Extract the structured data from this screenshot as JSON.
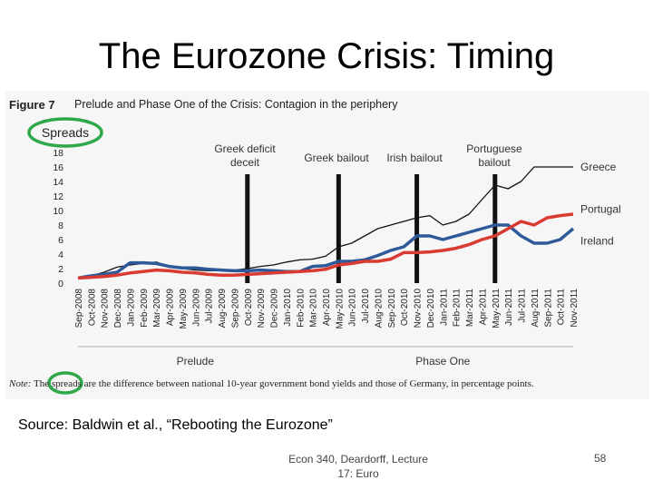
{
  "slide": {
    "title": "The Eurozone Crisis:  Timing",
    "figure_label": "Figure 7",
    "figure_caption": "Prelude and Phase One of the Crisis: Contagion in the periphery",
    "note_label": "Note:",
    "note_text": " The spreads are the difference between national 10-year government bond yields and those of Germany, in percentage points.",
    "source": "Source:  Baldwin et al., “Rebooting the Eurozone”",
    "footer": "Econ 340, Deardorff, Lecture 17: Euro",
    "slide_number": "58"
  },
  "colors": {
    "greece": "#111111",
    "portugal": "#d93a32",
    "ireland": "#2e5a9a",
    "highlight": "#2ea84a",
    "event_line": "#111111",
    "background": "#f6f6f6"
  },
  "chart_data": {
    "type": "line",
    "title": "Prelude and Phase One of the Crisis: Contagion in the periphery",
    "ylabel": "Spreads",
    "xlabel": "",
    "ylim": [
      0,
      18
    ],
    "yticks": [
      0,
      2,
      4,
      6,
      8,
      10,
      12,
      14,
      16,
      18
    ],
    "categories": [
      "Sep-2008",
      "Oct-2008",
      "Nov-2008",
      "Dec-2008",
      "Jan-2009",
      "Feb-2009",
      "Mar-2009",
      "Apr-2009",
      "May-2009",
      "Jun-2009",
      "Jul-2009",
      "Aug-2009",
      "Sep-2009",
      "Oct-2009",
      "Nov-2009",
      "Dec-2009",
      "Jan-2010",
      "Feb-2010",
      "Mar-2010",
      "Apr-2010",
      "May-2010",
      "Jun-2010",
      "Jul-2010",
      "Aug-2010",
      "Sep-2010",
      "Oct-2010",
      "Nov-2010",
      "Dec-2010",
      "Jan-2011",
      "Feb-2011",
      "Mar-2011",
      "Apr-2011",
      "May-2011",
      "Jun-2011",
      "Jul-2011",
      "Aug-2011",
      "Sep-2011",
      "Oct-2011",
      "Nov-2011"
    ],
    "series": [
      {
        "name": "Greece",
        "color_key": "greece",
        "values": [
          0.7,
          1.0,
          1.5,
          2.2,
          2.5,
          2.7,
          2.9,
          2.3,
          2.0,
          1.8,
          1.7,
          1.7,
          1.8,
          2.0,
          2.3,
          2.5,
          2.9,
          3.2,
          3.3,
          3.7,
          5.0,
          5.5,
          6.5,
          7.5,
          8.0,
          8.5,
          9.0,
          9.3,
          8.0,
          8.5,
          9.5,
          11.5,
          13.5,
          13.0,
          14.0,
          16.0,
          16.0,
          16.0,
          16.0
        ]
      },
      {
        "name": "Portugal",
        "color_key": "portugal",
        "values": [
          0.7,
          0.8,
          0.9,
          1.1,
          1.4,
          1.6,
          1.8,
          1.7,
          1.5,
          1.4,
          1.2,
          1.1,
          1.1,
          1.2,
          1.3,
          1.4,
          1.5,
          1.6,
          1.7,
          1.9,
          2.5,
          2.7,
          3.0,
          3.0,
          3.3,
          4.2,
          4.2,
          4.3,
          4.5,
          4.8,
          5.3,
          6.0,
          6.5,
          7.5,
          8.5,
          8.0,
          9.0,
          9.3,
          9.5
        ]
      },
      {
        "name": "Ireland",
        "color_key": "ireland",
        "values": [
          0.7,
          1.0,
          1.2,
          1.5,
          2.8,
          2.8,
          2.7,
          2.3,
          2.1,
          2.1,
          1.9,
          1.8,
          1.7,
          1.7,
          1.8,
          1.7,
          1.6,
          1.6,
          2.3,
          2.4,
          3.0,
          3.0,
          3.2,
          3.8,
          4.5,
          5.0,
          6.5,
          6.5,
          6.0,
          6.5,
          7.0,
          7.5,
          8.0,
          8.0,
          6.5,
          5.5,
          5.5,
          6.0,
          7.5
        ]
      }
    ],
    "events": [
      {
        "label_lines": [
          "Greek deficit",
          "deceit"
        ],
        "category": "Oct-2009"
      },
      {
        "label_lines": [
          "Greek bailout"
        ],
        "category": "May-2010"
      },
      {
        "label_lines": [
          "Irish bailout"
        ],
        "category": "Nov-2010"
      },
      {
        "label_lines": [
          "Portuguese",
          "bailout"
        ],
        "category": "May-2011"
      }
    ],
    "phases": [
      {
        "label": "Prelude",
        "center_category": "Jun-2009"
      },
      {
        "label": "Phase One",
        "center_category": "Jan-2011"
      }
    ],
    "highlighted_terms": [
      "Spreads",
      "spreads"
    ]
  }
}
